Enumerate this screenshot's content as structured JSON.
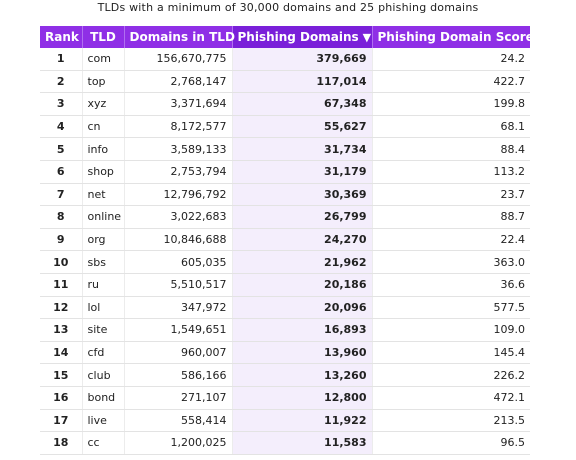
{
  "caption": "TLDs with a minimum of 30,000 domains and 25 phishing domains",
  "columns": {
    "rank": "Rank",
    "tld": "TLD",
    "domains": "Domains in TLD",
    "phishing": "Phishing Domains",
    "score": "Phishing Domain Score"
  },
  "sort_indicator": "▼",
  "colors": {
    "header": "#8f2fe6",
    "sorted_header": "#7a1fd9",
    "sorted_column_tint": "#f4eefc"
  },
  "rows": [
    {
      "rank": "1",
      "tld": "com",
      "domains": "156,670,775",
      "phishing": "379,669",
      "score": "24.2"
    },
    {
      "rank": "2",
      "tld": "top",
      "domains": "2,768,147",
      "phishing": "117,014",
      "score": "422.7"
    },
    {
      "rank": "3",
      "tld": "xyz",
      "domains": "3,371,694",
      "phishing": "67,348",
      "score": "199.8"
    },
    {
      "rank": "4",
      "tld": "cn",
      "domains": "8,172,577",
      "phishing": "55,627",
      "score": "68.1"
    },
    {
      "rank": "5",
      "tld": "info",
      "domains": "3,589,133",
      "phishing": "31,734",
      "score": "88.4"
    },
    {
      "rank": "6",
      "tld": "shop",
      "domains": "2,753,794",
      "phishing": "31,179",
      "score": "113.2"
    },
    {
      "rank": "7",
      "tld": "net",
      "domains": "12,796,792",
      "phishing": "30,369",
      "score": "23.7"
    },
    {
      "rank": "8",
      "tld": "online",
      "domains": "3,022,683",
      "phishing": "26,799",
      "score": "88.7"
    },
    {
      "rank": "9",
      "tld": "org",
      "domains": "10,846,688",
      "phishing": "24,270",
      "score": "22.4"
    },
    {
      "rank": "10",
      "tld": "sbs",
      "domains": "605,035",
      "phishing": "21,962",
      "score": "363.0"
    },
    {
      "rank": "11",
      "tld": "ru",
      "domains": "5,510,517",
      "phishing": "20,186",
      "score": "36.6"
    },
    {
      "rank": "12",
      "tld": "lol",
      "domains": "347,972",
      "phishing": "20,096",
      "score": "577.5"
    },
    {
      "rank": "13",
      "tld": "site",
      "domains": "1,549,651",
      "phishing": "16,893",
      "score": "109.0"
    },
    {
      "rank": "14",
      "tld": "cfd",
      "domains": "960,007",
      "phishing": "13,960",
      "score": "145.4"
    },
    {
      "rank": "15",
      "tld": "club",
      "domains": "586,166",
      "phishing": "13,260",
      "score": "226.2"
    },
    {
      "rank": "16",
      "tld": "bond",
      "domains": "271,107",
      "phishing": "12,800",
      "score": "472.1"
    },
    {
      "rank": "17",
      "tld": "live",
      "domains": "558,414",
      "phishing": "11,922",
      "score": "213.5"
    },
    {
      "rank": "18",
      "tld": "cc",
      "domains": "1,200,025",
      "phishing": "11,583",
      "score": "96.5"
    }
  ]
}
